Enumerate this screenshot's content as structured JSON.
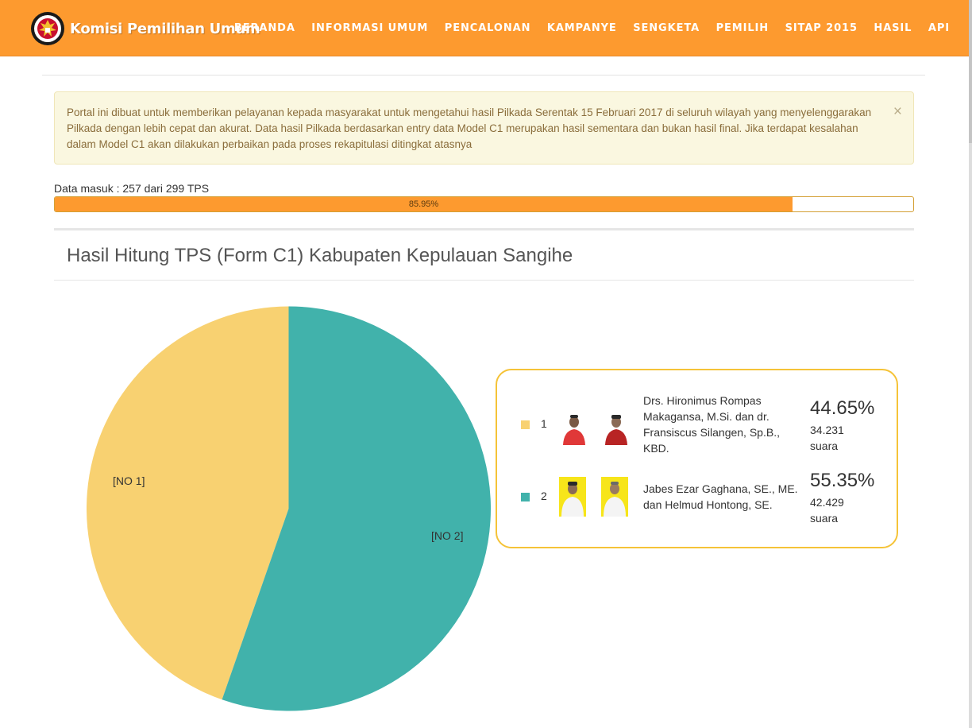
{
  "header": {
    "brand": "Komisi Pemilihan Umum",
    "logo_text_top": "KOMISI",
    "logo_text_bottom": "PEMILIHAN UMUM",
    "menu": [
      "BERANDA",
      "INFORMASI UMUM",
      "PENCALONAN",
      "KAMPANYE",
      "SENGKETA",
      "PEMILIH",
      "SITAP 2015",
      "HASIL",
      "API"
    ]
  },
  "alert": {
    "text": "Portal ini dibuat untuk memberikan pelayanan kepada masyarakat untuk mengetahui hasil Pilkada Serentak 15 Februari 2017 di seluruh wilayah yang menyelenggarakan Pilkada dengan lebih cepat dan akurat. Data hasil Pilkada berdasarkan entry data Model C1 merupakan hasil sementara dan bukan hasil final. Jika terdapat kesalahan dalam Model C1 akan dilakukan perbaikan pada proses rekapitulasi ditingkat atasnya",
    "close": "×"
  },
  "progress": {
    "label": "Data masuk : 257 dari 299 TPS",
    "percent_text": "85.95%",
    "value": 85.95
  },
  "section_title": "Hasil Hitung TPS (Form C1) Kabupaten Kepulauan Sangihe",
  "colors": {
    "orange": "#fd9a2f",
    "candidate1": "#f8d171",
    "candidate2": "#41b2ab",
    "legend_border": "#f5c338"
  },
  "chart_data": {
    "type": "pie",
    "categories": [
      "[NO 1]",
      "[NO 2]"
    ],
    "values": [
      44.65,
      55.35
    ],
    "colors": [
      "#f8d171",
      "#41b2ab"
    ]
  },
  "candidates": [
    {
      "number": "1",
      "name": "Drs. Hironimus Rompas Makagansa, M.Si. dan dr. Fransiscus Silangen, Sp.B., KBD.",
      "percent": "44.65%",
      "votes": "34.231 suara",
      "color": "#f8d171"
    },
    {
      "number": "2",
      "name": "Jabes Ezar Gaghana, SE., ME. dan Helmud Hontong, SE.",
      "percent": "55.35%",
      "votes": "42.429 suara",
      "color": "#41b2ab"
    }
  ]
}
